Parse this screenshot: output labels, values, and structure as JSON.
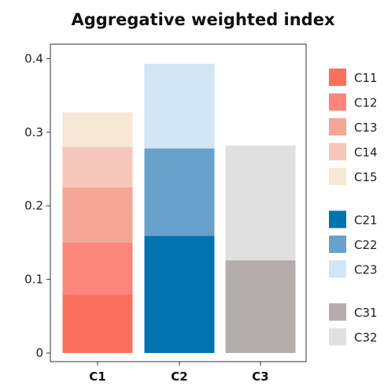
{
  "chart_data": {
    "type": "bar",
    "stacked": true,
    "title": "Aggregative weighted index",
    "xlabel": "",
    "ylabel": "",
    "ylim": [
      0,
      0.41
    ],
    "yticks": [
      "0",
      "0.1",
      "0.2",
      "0.3",
      "0.4"
    ],
    "ytick_values": [
      0,
      0.1,
      0.2,
      0.3,
      0.4
    ],
    "grid": false,
    "legend_position": "right",
    "categories": [
      "C1",
      "C2",
      "C3"
    ],
    "series": [
      {
        "name": "C11",
        "color": "#fb6f5d",
        "values": [
          0.08,
          0,
          0
        ]
      },
      {
        "name": "C12",
        "color": "#fb8679",
        "values": [
          0.07,
          0,
          0
        ]
      },
      {
        "name": "C13",
        "color": "#f4a797",
        "values": [
          0.075,
          0,
          0
        ]
      },
      {
        "name": "C14",
        "color": "#f7c6bb",
        "values": [
          0.055,
          0,
          0
        ]
      },
      {
        "name": "C15",
        "color": "#f6e8d5",
        "values": [
          0.047,
          0,
          0
        ]
      },
      {
        "name": "C21",
        "color": "#0174b0",
        "values": [
          0,
          0.159,
          0
        ]
      },
      {
        "name": "C22",
        "color": "#68a2cc",
        "values": [
          0,
          0.119,
          0
        ]
      },
      {
        "name": "C23",
        "color": "#d1e5f4",
        "values": [
          0,
          0.115,
          0
        ]
      },
      {
        "name": "C31",
        "color": "#b5adac",
        "values": [
          0,
          0,
          0.126
        ]
      },
      {
        "name": "C32",
        "color": "#e0e0e0",
        "values": [
          0,
          0,
          0.156
        ]
      }
    ],
    "legend_groups": [
      [
        "C11",
        "C12",
        "C13",
        "C14",
        "C15"
      ],
      [
        "C21",
        "C22",
        "C23"
      ],
      [
        "C31",
        "C32"
      ]
    ]
  }
}
